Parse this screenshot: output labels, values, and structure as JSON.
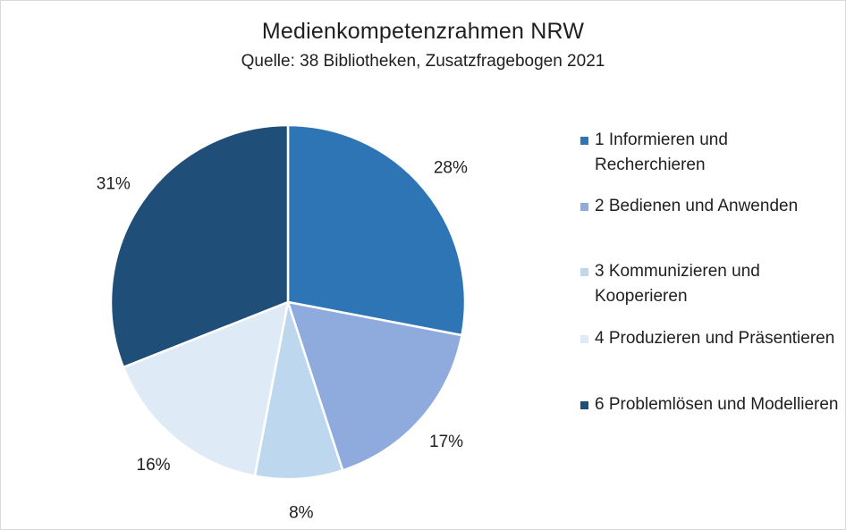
{
  "chart_data": {
    "type": "pie",
    "title": "Medienkompetenzrahmen  NRW",
    "subtitle": "Quelle: 38 Bibliotheken, Zusatzfragebogen 2021",
    "legend_position": "right",
    "slices": [
      {
        "label": "1 Informieren und Recherchieren",
        "value": 28,
        "value_label": "28%",
        "color": "#2e75b6"
      },
      {
        "label": "2 Bedienen und Anwenden",
        "value": 17,
        "value_label": "17%",
        "color": "#8faadc"
      },
      {
        "label": "3 Kommunizieren und Kooperieren",
        "value": 8,
        "value_label": "8%",
        "color": "#bdd7ee"
      },
      {
        "label": "4 Produzieren und Präsentieren",
        "value": 16,
        "value_label": "16%",
        "color": "#deebf7"
      },
      {
        "label": "6 Problemlösen und Modellieren",
        "value": 31,
        "value_label": "31%",
        "color": "#1f4e79"
      }
    ]
  }
}
